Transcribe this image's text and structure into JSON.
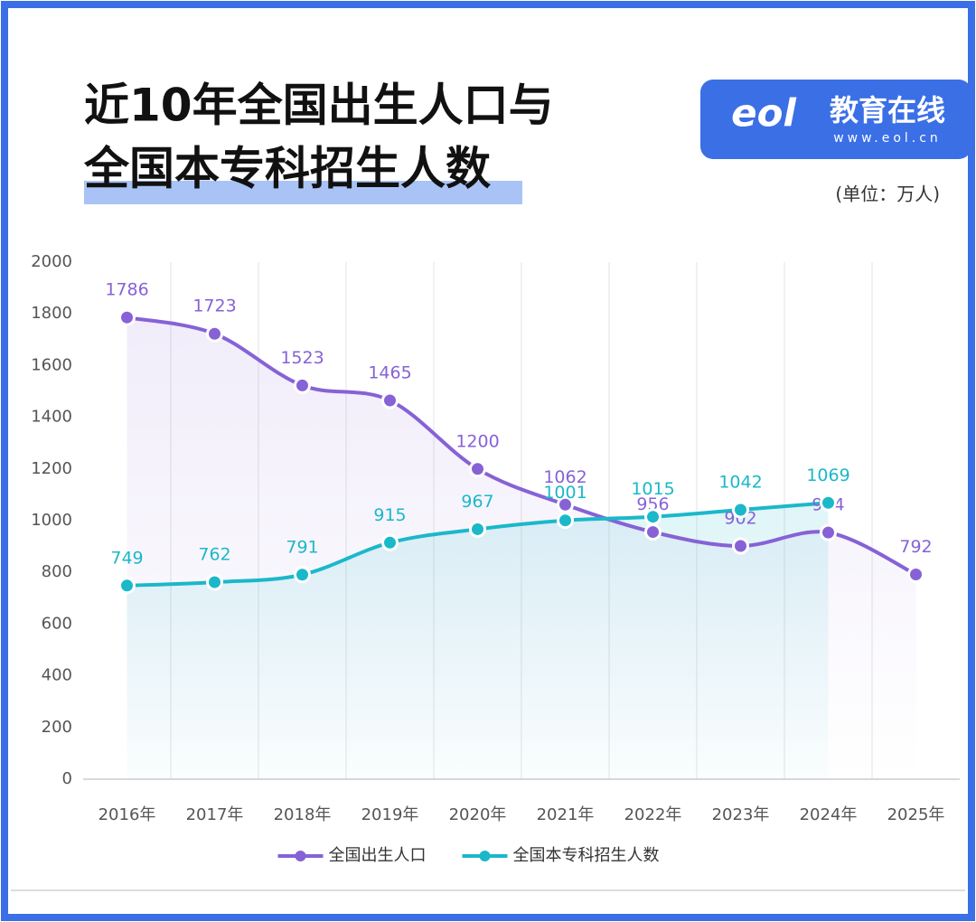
{
  "logo": {
    "mark": "eol",
    "text": "教育在线",
    "url": "www.eol.cn"
  },
  "chart_data": {
    "type": "line",
    "title": [
      "近10年全国出生人口与",
      "全国本专科招生人数"
    ],
    "unit": "(单位：万人)",
    "categories": [
      "2016年",
      "2017年",
      "2018年",
      "2019年",
      "2020年",
      "2021年",
      "2022年",
      "2023年",
      "2024年",
      "2025年"
    ],
    "series": [
      {
        "name": "全国出生人口",
        "color": "#8662d6",
        "values": [
          1786,
          1723,
          1523,
          1465,
          1200,
          1062,
          956,
          902,
          954,
          792
        ]
      },
      {
        "name": "全国本专科招生人数",
        "color": "#1bb8c9",
        "values": [
          749,
          762,
          791,
          915,
          967,
          1001,
          1015,
          1042,
          1069,
          null
        ]
      }
    ],
    "ylim": [
      0,
      2000
    ],
    "yticks": [
      0,
      200,
      400,
      600,
      800,
      1000,
      1200,
      1400,
      1600,
      1800,
      2000
    ],
    "grid": "vertical",
    "smooth": true,
    "legend": "bottom"
  }
}
